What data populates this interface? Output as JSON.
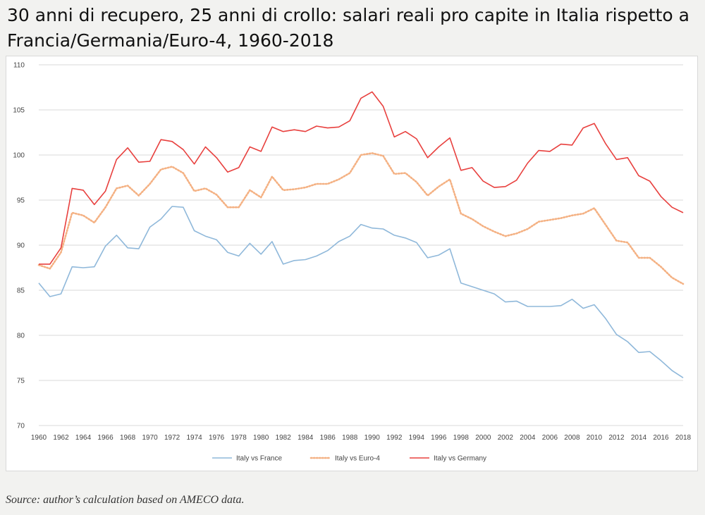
{
  "title": "30 anni di recupero, 25 anni di crollo: salari reali pro capite in Italia rispetto a Francia/Germania/Euro-4, 1960-2018",
  "source": "Source: author’s calculation based on AMECO data.",
  "chart_data": {
    "type": "line",
    "title": "30 anni di recupero, 25 anni di crollo: salari reali pro capite in Italia rispetto a Francia/Germania/Euro-4, 1960-2018",
    "xlabel": "",
    "ylabel": "",
    "xlim": [
      1960,
      2018
    ],
    "ylim": [
      70,
      110
    ],
    "grid": true,
    "legend_position": "bottom",
    "x_tick_labels": [
      "1960",
      "1962",
      "1964",
      "1966",
      "1968",
      "1970",
      "1972",
      "1974",
      "1976",
      "1978",
      "1980",
      "1982",
      "1984",
      "1986",
      "1988",
      "1990",
      "1992",
      "1994",
      "1996",
      "1998",
      "2000",
      "2002",
      "2004",
      "2006",
      "2008",
      "2010",
      "2012",
      "2014",
      "2016",
      "2018"
    ],
    "y_tick_labels": [
      "70",
      "75",
      "80",
      "85",
      "90",
      "95",
      "100",
      "105",
      "110"
    ],
    "x": [
      1960,
      1961,
      1962,
      1963,
      1964,
      1965,
      1966,
      1967,
      1968,
      1969,
      1970,
      1971,
      1972,
      1973,
      1974,
      1975,
      1976,
      1977,
      1978,
      1979,
      1980,
      1981,
      1982,
      1983,
      1984,
      1985,
      1986,
      1987,
      1988,
      1989,
      1990,
      1991,
      1992,
      1993,
      1994,
      1995,
      1996,
      1997,
      1998,
      1999,
      2000,
      2001,
      2002,
      2003,
      2004,
      2005,
      2006,
      2007,
      2008,
      2009,
      2010,
      2011,
      2012,
      2013,
      2014,
      2015,
      2016,
      2017,
      2018
    ],
    "series": [
      {
        "name": "Italy vs France",
        "color": "#8fb8da",
        "style": "solid",
        "values": [
          85.8,
          84.3,
          84.6,
          87.6,
          87.5,
          87.6,
          89.9,
          91.1,
          89.7,
          89.6,
          92.0,
          92.9,
          94.3,
          94.2,
          91.6,
          91.0,
          90.6,
          89.2,
          88.8,
          90.2,
          89.0,
          90.4,
          87.9,
          88.3,
          88.4,
          88.8,
          89.4,
          90.4,
          91.0,
          92.3,
          91.9,
          91.8,
          91.1,
          90.8,
          90.3,
          88.6,
          88.9,
          89.6,
          85.8,
          85.4,
          85.0,
          84.6,
          83.7,
          83.8,
          83.2,
          83.2,
          83.2,
          83.3,
          84.0,
          83.0,
          83.4,
          81.9,
          80.1,
          79.3,
          78.1,
          78.2,
          77.2,
          76.1,
          75.3
        ]
      },
      {
        "name": "Italy vs Euro-4",
        "color": "#f4b183",
        "style": "dotted",
        "values": [
          87.8,
          87.4,
          89.2,
          93.6,
          93.3,
          92.5,
          94.2,
          96.3,
          96.6,
          95.5,
          96.8,
          98.4,
          98.7,
          98.0,
          96.0,
          96.3,
          95.6,
          94.2,
          94.2,
          96.1,
          95.3,
          97.6,
          96.1,
          96.2,
          96.4,
          96.8,
          96.8,
          97.3,
          98.0,
          100.0,
          100.2,
          99.9,
          97.9,
          98.0,
          97.0,
          95.5,
          96.5,
          97.3,
          93.5,
          92.9,
          92.1,
          91.5,
          91.0,
          91.3,
          91.8,
          92.6,
          92.8,
          93.0,
          93.3,
          93.5,
          94.1,
          92.3,
          90.5,
          90.3,
          88.6,
          88.6,
          87.6,
          86.4,
          85.7
        ]
      },
      {
        "name": "Italy vs Germany",
        "color": "#e8403e",
        "style": "solid",
        "values": [
          87.9,
          87.9,
          89.7,
          96.3,
          96.1,
          94.5,
          96.0,
          99.5,
          100.8,
          99.2,
          99.3,
          101.7,
          101.5,
          100.6,
          99.0,
          100.9,
          99.7,
          98.1,
          98.6,
          100.9,
          100.4,
          103.1,
          102.6,
          102.8,
          102.6,
          103.2,
          103.0,
          103.1,
          103.8,
          106.3,
          107.0,
          105.4,
          102.0,
          102.6,
          101.8,
          99.7,
          100.9,
          101.9,
          98.3,
          98.6,
          97.1,
          96.4,
          96.5,
          97.2,
          99.1,
          100.5,
          100.4,
          101.2,
          101.1,
          103.0,
          103.5,
          101.3,
          99.5,
          99.7,
          97.7,
          97.1,
          95.4,
          94.2,
          93.6
        ]
      }
    ]
  }
}
